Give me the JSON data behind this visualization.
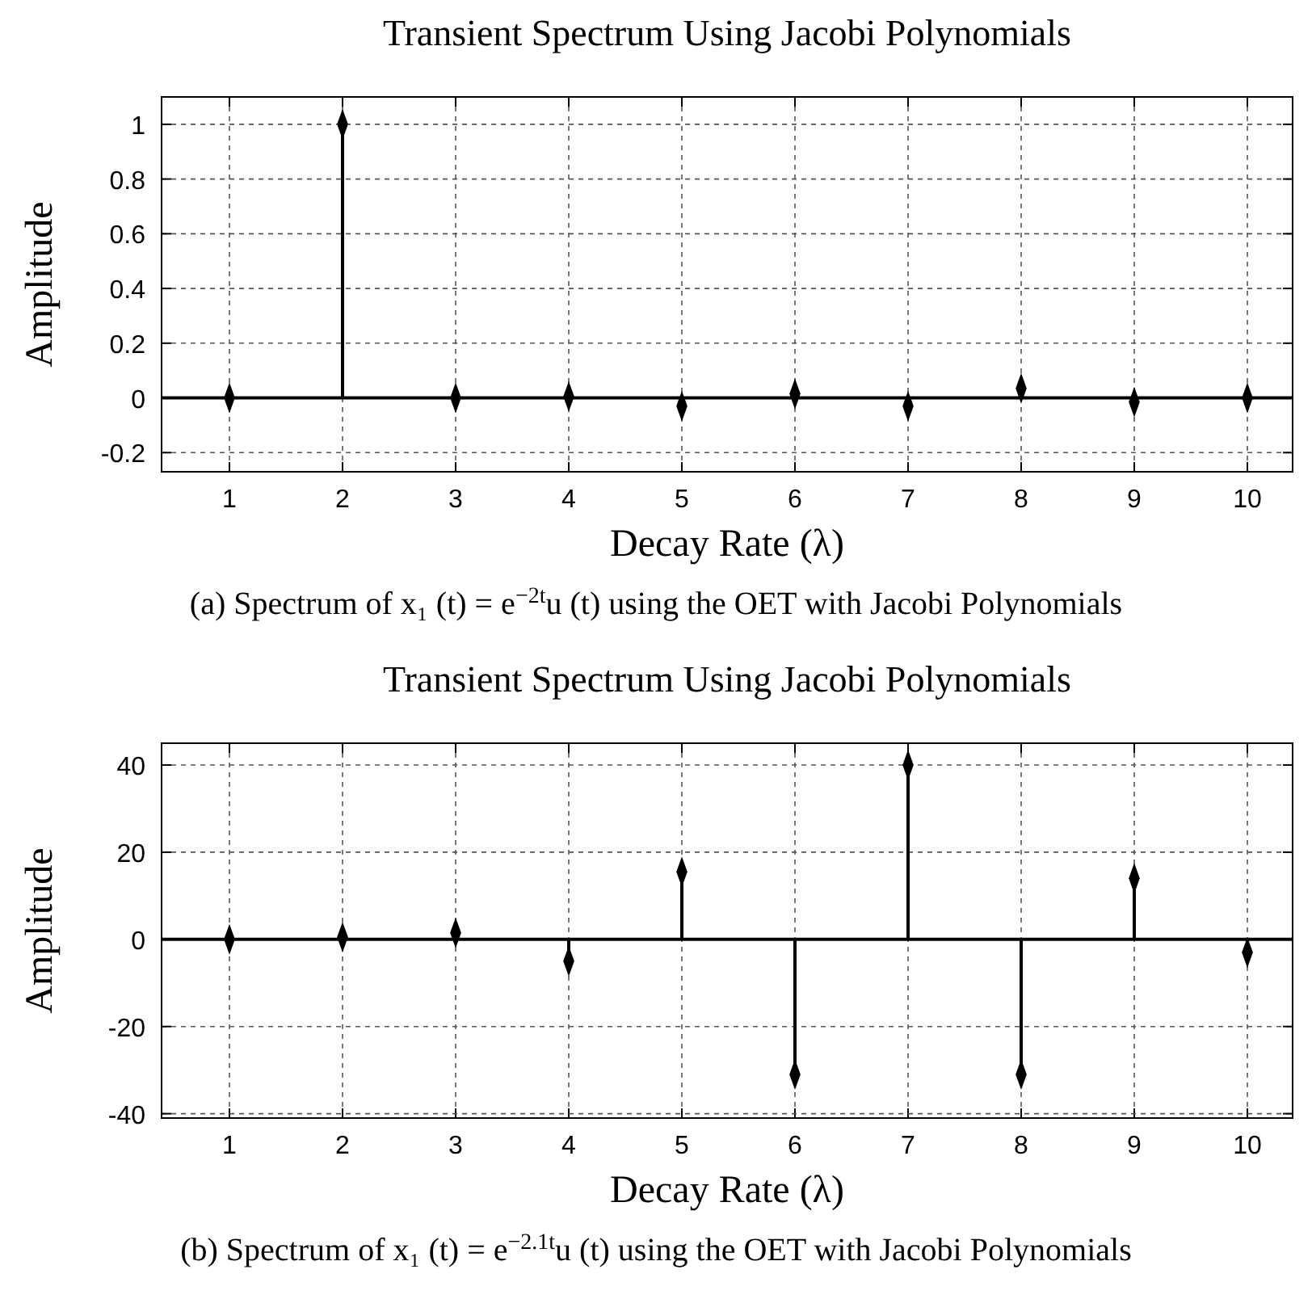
{
  "chart_data": [
    {
      "type": "lollipop",
      "title": "Transient Spectrum Using Jacobi Polynomials",
      "xlabel": "Decay Rate (λ)",
      "ylabel": "Amplitude",
      "annotations": [
        "(a) Spectrum of x₁ (t) = e$^{−2t}$u (t) using the OET with Jacobi Polynomials"
      ],
      "x": [
        1,
        2,
        3,
        4,
        5,
        6,
        7,
        8,
        9,
        10
      ],
      "values": [
        0,
        1,
        0,
        0.005,
        -0.03,
        0.015,
        -0.03,
        0.035,
        -0.015,
        0
      ],
      "color": "#000000",
      "marker": "diamond",
      "grid": true,
      "xlim": [
        0.4,
        10.4
      ],
      "xticks": [
        1,
        2,
        3,
        4,
        5,
        6,
        7,
        8,
        9,
        10
      ],
      "ylim": [
        -0.27,
        1.1
      ],
      "yticks": [
        -0.2,
        0,
        0.2,
        0.4,
        0.6,
        0.8,
        1
      ]
    },
    {
      "type": "lollipop",
      "title": "Transient Spectrum Using Jacobi Polynomials",
      "xlabel": "Decay Rate (λ)",
      "ylabel": "Amplitude",
      "annotations": [
        "(b) Spectrum of x₁ (t) = e$^{−2.1t}$u (t) using the OET with Jacobi Polynomials"
      ],
      "x": [
        1,
        2,
        3,
        4,
        5,
        6,
        7,
        8,
        9,
        10
      ],
      "values": [
        0,
        0.5,
        1.5,
        -5,
        15.5,
        -31,
        40,
        -31,
        14,
        -3
      ],
      "color": "#000000",
      "marker": "diamond",
      "grid": true,
      "xlim": [
        0.4,
        10.4
      ],
      "xticks": [
        1,
        2,
        3,
        4,
        5,
        6,
        7,
        8,
        9,
        10
      ],
      "ylim": [
        -41,
        45
      ],
      "yticks": [
        -40,
        -20,
        0,
        20,
        40
      ]
    }
  ]
}
